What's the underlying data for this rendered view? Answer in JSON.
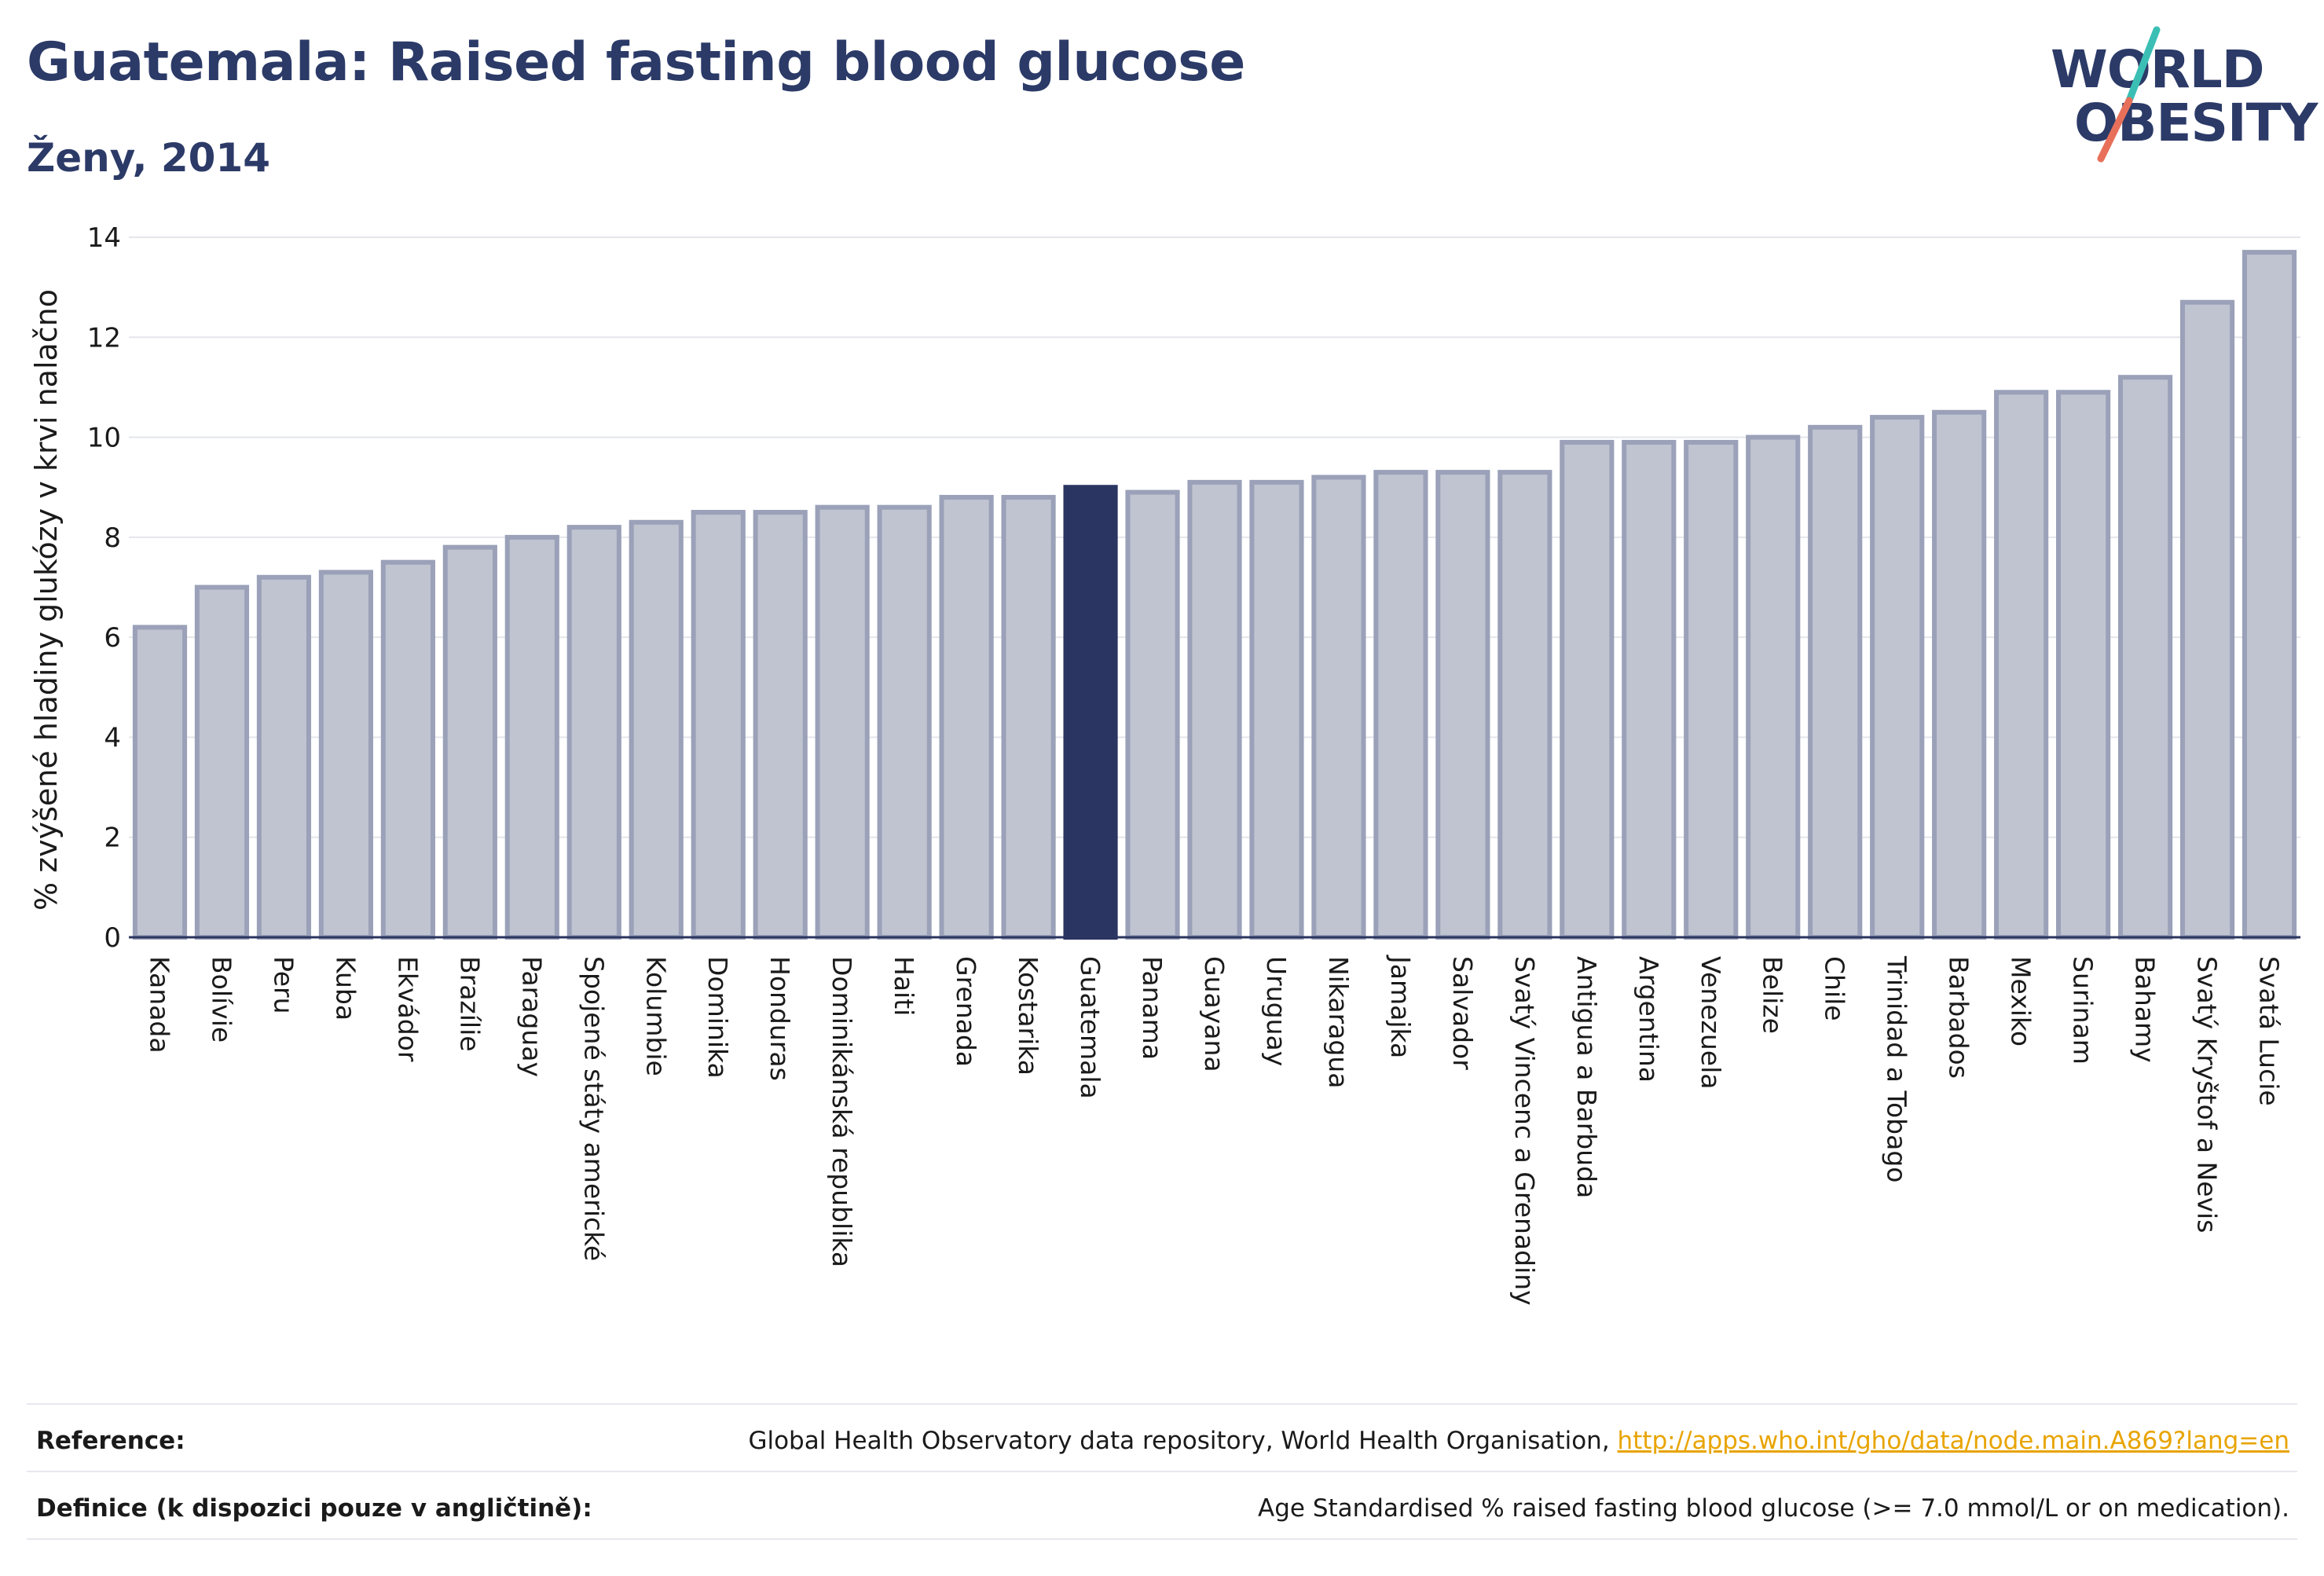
{
  "header": {
    "title": "Guatemala: Raised fasting blood glucose",
    "subtitle": "Ženy, 2014"
  },
  "logo": {
    "line1": "WORLD",
    "line2": "OBESITY",
    "slash_colors": [
      "#3bbfb5",
      "#e8705a"
    ]
  },
  "footer": {
    "reference_label": "Reference:",
    "reference_text": "Global Health Observatory data repository, World Health Organisation,",
    "reference_link": "http://apps.who.int/gho/data/node.main.A869?lang=en",
    "definition_label": "Definice (k dispozici pouze v angličtině):",
    "definition_text": "Age Standardised % raised fasting blood glucose (>= 7.0 mmol/L or on medication)."
  },
  "chart_data": {
    "type": "bar",
    "title": "Guatemala: Raised fasting blood glucose",
    "ylabel": "% zvýšené hladiny glukózy v krvi nalačno",
    "xlabel": "",
    "ylim": [
      0,
      14
    ],
    "yticks": [
      0,
      2,
      4,
      6,
      8,
      10,
      12,
      14
    ],
    "grid": true,
    "highlight": "Guatemala",
    "colors": {
      "bar": "#c0c4d1",
      "bar_border": "#9aa1b8",
      "highlight": "#2b3561"
    },
    "categories": [
      "Kanada",
      "Bolívie",
      "Peru",
      "Kuba",
      "Ekvádor",
      "Brazílie",
      "Paraguay",
      "Spojené státy americké",
      "Kolumbie",
      "Dominika",
      "Honduras",
      "Dominikánská republika",
      "Haiti",
      "Grenada",
      "Kostarika",
      "Guatemala",
      "Panama",
      "Guayana",
      "Uruguay",
      "Nikaragua",
      "Jamajka",
      "Salvador",
      "Svatý Vincenc a Grenadiny",
      "Antigua a Barbuda",
      "Argentina",
      "Venezuela",
      "Belize",
      "Chile",
      "Trinidad a Tobago",
      "Barbados",
      "Mexiko",
      "Surinam",
      "Bahamy",
      "Svatý Kryštof a Nevis",
      "Svatá Lucie"
    ],
    "values": [
      6.2,
      7.0,
      7.2,
      7.3,
      7.5,
      7.8,
      8.0,
      8.2,
      8.3,
      8.5,
      8.5,
      8.6,
      8.6,
      8.8,
      8.8,
      9.0,
      8.9,
      9.1,
      9.1,
      9.2,
      9.3,
      9.3,
      9.3,
      9.9,
      9.9,
      9.9,
      10.0,
      10.2,
      10.4,
      10.5,
      10.9,
      10.9,
      11.2,
      12.7,
      13.7
    ]
  }
}
